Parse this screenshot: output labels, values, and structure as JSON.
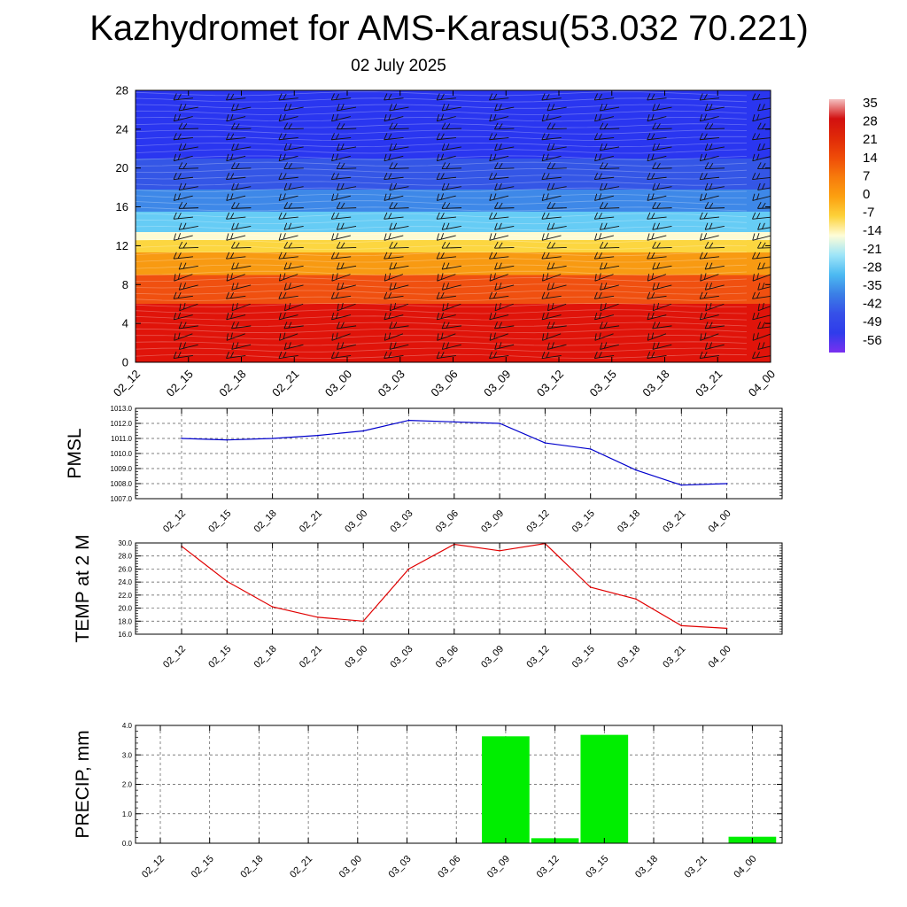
{
  "page": {
    "title": "Kazhydromet for AMS-Karasu(53.032 70.221)",
    "subtitle": "02 July 2025"
  },
  "chart_data": [
    {
      "type": "heatmap",
      "name": "cross-section",
      "x_ticks": [
        "02_12",
        "02_15",
        "02_18",
        "02_21",
        "03_00",
        "03_03",
        "03_06",
        "03_09",
        "03_12",
        "03_15",
        "03_18",
        "03_21",
        "04_00"
      ],
      "y_ticks": [
        0,
        4,
        8,
        12,
        16,
        20,
        24,
        28
      ],
      "ylim": [
        0,
        28
      ],
      "colorbar": {
        "labels": [
          "35",
          "28",
          "21",
          "14",
          "7",
          "0",
          "-7",
          "-14",
          "-21",
          "-28",
          "-35",
          "-42",
          "-49",
          "-56"
        ],
        "colors": [
          "#f4c0c0",
          "#d21010",
          "#e02a08",
          "#ef4c08",
          "#f77b0c",
          "#fca010",
          "#fdd23a",
          "#fefdd8",
          "#9ee5f8",
          "#4cbaf2",
          "#3b7fe6",
          "#3650e8",
          "#2f3ceb",
          "#7a30f0"
        ]
      },
      "bands": [
        {
          "from": 0,
          "to": 6,
          "color": "#e0140a"
        },
        {
          "from": 6,
          "to": 9,
          "color": "#f05010"
        },
        {
          "from": 9,
          "to": 11.3,
          "color": "#f89a12"
        },
        {
          "from": 11.3,
          "to": 12.6,
          "color": "#fcd640"
        },
        {
          "from": 12.6,
          "to": 13.4,
          "color": "#fefbd2"
        },
        {
          "from": 13.4,
          "to": 15.5,
          "color": "#66ccf5"
        },
        {
          "from": 15.5,
          "to": 17.8,
          "color": "#3e88e8"
        },
        {
          "from": 17.8,
          "to": 21,
          "color": "#3456e6"
        },
        {
          "from": 21,
          "to": 28,
          "color": "#2a36f0"
        }
      ]
    },
    {
      "type": "line",
      "name": "PMSL",
      "ylabel": "PMSL",
      "categories": [
        "02_12",
        "02_15",
        "02_18",
        "02_21",
        "03_00",
        "03_03",
        "03_06",
        "03_09",
        "03_12",
        "03_15",
        "03_18",
        "03_21",
        "04_00"
      ],
      "values": [
        1011.0,
        1010.9,
        1011.0,
        1011.2,
        1011.5,
        1012.2,
        1012.1,
        1012.0,
        1010.7,
        1010.3,
        1008.9,
        1007.9,
        1008.0
      ],
      "y_ticks": [
        "1007.0",
        "1008.0",
        "1009.0",
        "1010.0",
        "1011.0",
        "1012.0",
        "1013.0"
      ],
      "ylim": [
        1007,
        1013
      ],
      "color": "#0000cc",
      "grid": true
    },
    {
      "type": "line",
      "name": "TEMP",
      "ylabel": "TEMP at 2 M",
      "categories": [
        "02_12",
        "02_15",
        "02_18",
        "02_21",
        "03_00",
        "03_03",
        "03_06",
        "03_09",
        "03_12",
        "03_15",
        "03_18",
        "03_21",
        "04_00"
      ],
      "values": [
        29.5,
        24.1,
        20.2,
        18.6,
        18.0,
        26.0,
        29.8,
        28.8,
        29.9,
        23.2,
        21.4,
        17.3,
        16.9
      ],
      "y_ticks": [
        "16.0",
        "18.0",
        "20.0",
        "22.0",
        "24.0",
        "26.0",
        "28.0",
        "30.0"
      ],
      "ylim": [
        16,
        30
      ],
      "color": "#e00000",
      "grid": true
    },
    {
      "type": "bar",
      "name": "PRECIP",
      "ylabel": "PRECIP, mm",
      "categories": [
        "02_12",
        "02_15",
        "02_18",
        "02_21",
        "03_00",
        "03_03",
        "03_06",
        "03_09",
        "03_12",
        "03_15",
        "03_18",
        "03_21",
        "04_00"
      ],
      "values": [
        0,
        0,
        0,
        0,
        0,
        0,
        0,
        3.63,
        0.17,
        3.68,
        0,
        0,
        0.22
      ],
      "y_ticks": [
        "0.0",
        "1.0",
        "2.0",
        "3.0",
        "4.0"
      ],
      "ylim": [
        0,
        4
      ],
      "color": "#00ee00",
      "grid": true
    }
  ]
}
